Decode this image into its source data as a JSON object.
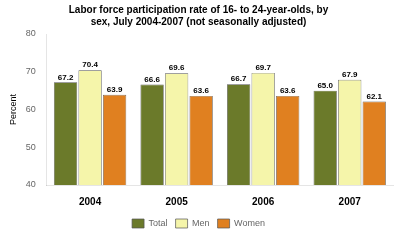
{
  "chart_data": {
    "type": "bar",
    "title": "Labor force participation rate of 16- to 24-year-olds, by\nsex, July 2004-2007 (not seasonally adjusted)",
    "categories": [
      "2004",
      "2005",
      "2006",
      "2007"
    ],
    "series": [
      {
        "name": "Total",
        "color": "#6B7A2A",
        "values": [
          67.2,
          66.6,
          66.7,
          65.0
        ],
        "value_labels": [
          "67.2",
          "66.6",
          "66.7",
          "65.0"
        ]
      },
      {
        "name": "Men",
        "color": "#F5F5AA",
        "values": [
          70.4,
          69.6,
          69.7,
          67.9
        ],
        "value_labels": [
          "70.4",
          "69.6",
          "69.7",
          "67.9"
        ]
      },
      {
        "name": "Women",
        "color": "#E08020",
        "values": [
          63.9,
          63.6,
          63.6,
          62.1
        ],
        "value_labels": [
          "63.9",
          "63.6",
          "63.6",
          "62.1"
        ]
      }
    ],
    "ylabel": "Percent",
    "ylim": [
      40.0,
      80.0
    ],
    "yticks": [
      40,
      50,
      60,
      70,
      80
    ],
    "grid": false,
    "legend": "bottom",
    "data_labels": true
  }
}
